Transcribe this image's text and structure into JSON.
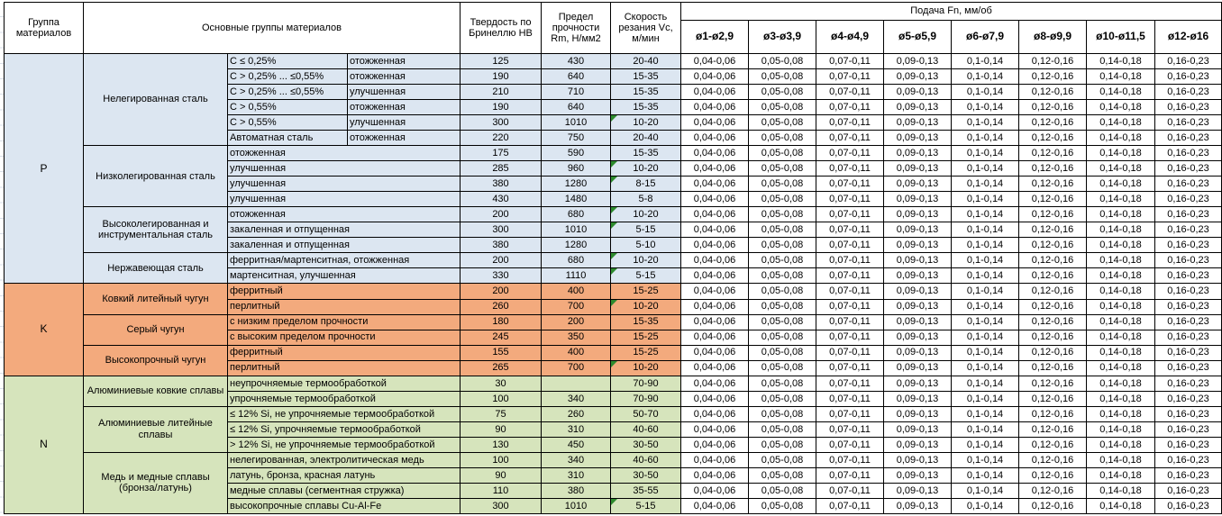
{
  "table": {
    "header": {
      "group": "Группа материалов",
      "main_groups": "Основные группы материалов",
      "hardness": "Твердость по Бринеллю HB",
      "strength": "Предел прочности Rm, Н/мм2",
      "speed": "Скорость резания Vc, м/мин",
      "feed_title": "Подача Fn, мм/об",
      "feed_columns": [
        "ø1-ø2,9",
        "ø3-ø3,9",
        "ø4-ø4,9",
        "ø5-ø5,9",
        "ø6-ø7,9",
        "ø8-ø9,9",
        "ø10-ø11,5",
        "ø12-ø16"
      ]
    },
    "feed_values": [
      "0,04-0,06",
      "0,05-0,08",
      "0,07-0,11",
      "0,09-0,13",
      "0,1-0,14",
      "0,12-0,16",
      "0,14-0,18",
      "0,16-0,23"
    ],
    "colors": {
      "p": "#dce6f1",
      "k": "#f3aa7d",
      "n": "#d6e4bc",
      "flag_triangle": "#2e8b2e"
    },
    "groups": [
      {
        "code": "P",
        "color_key": "p",
        "subgroups": [
          {
            "name": "Нелегированная сталь",
            "rows": [
              {
                "cols": [
                  "C ≤ 0,25%",
                  "отожженная"
                ],
                "hb": "125",
                "rm": "430",
                "vc": "20-40",
                "flag": false
              },
              {
                "cols": [
                  "C > 0,25% ... ≤0,55%",
                  "отожженная"
                ],
                "hb": "190",
                "rm": "640",
                "vc": "15-35",
                "flag": false
              },
              {
                "cols": [
                  "C > 0,25% ... ≤0,55%",
                  "улучшенная"
                ],
                "hb": "210",
                "rm": "710",
                "vc": "15-35",
                "flag": false
              },
              {
                "cols": [
                  "C > 0,55%",
                  "отожженная"
                ],
                "hb": "190",
                "rm": "640",
                "vc": "15-35",
                "flag": false
              },
              {
                "cols": [
                  "C > 0,55%",
                  "улучшенная"
                ],
                "hb": "300",
                "rm": "1010",
                "vc": "10-20",
                "flag": true
              },
              {
                "cols": [
                  "Автоматная сталь",
                  "отожженная"
                ],
                "hb": "220",
                "rm": "750",
                "vc": "20-40",
                "flag": false
              }
            ]
          },
          {
            "name": "Низколегированная сталь",
            "rows": [
              {
                "cols": [
                  "отожженная"
                ],
                "hb": "175",
                "rm": "590",
                "vc": "15-35",
                "flag": false
              },
              {
                "cols": [
                  "улучшенная"
                ],
                "hb": "285",
                "rm": "960",
                "vc": "10-20",
                "flag": true
              },
              {
                "cols": [
                  "улучшенная"
                ],
                "hb": "380",
                "rm": "1280",
                "vc": "8-15",
                "flag": true
              },
              {
                "cols": [
                  "улучшенная"
                ],
                "hb": "430",
                "rm": "1480",
                "vc": "5-8",
                "flag": false
              }
            ]
          },
          {
            "name": "Высоколегированная и инструментальная сталь",
            "rows": [
              {
                "cols": [
                  "отожженная"
                ],
                "hb": "200",
                "rm": "680",
                "vc": "10-20",
                "flag": true
              },
              {
                "cols": [
                  "закаленная и отпущенная"
                ],
                "hb": "300",
                "rm": "1010",
                "vc": "5-15",
                "flag": true
              },
              {
                "cols": [
                  "закаленная и отпущенная"
                ],
                "hb": "380",
                "rm": "1280",
                "vc": "5-10",
                "flag": false
              }
            ]
          },
          {
            "name": "Нержавеющая сталь",
            "rows": [
              {
                "cols": [
                  "ферритная/мартенситная, отожженная"
                ],
                "hb": "200",
                "rm": "680",
                "vc": "10-20",
                "flag": true
              },
              {
                "cols": [
                  "мартенситная, улучшенная"
                ],
                "hb": "330",
                "rm": "1110",
                "vc": "5-15",
                "flag": true
              }
            ]
          }
        ]
      },
      {
        "code": "K",
        "color_key": "k",
        "subgroups": [
          {
            "name": "Ковкий литейный чугун",
            "rows": [
              {
                "cols": [
                  "ферритный"
                ],
                "hb": "200",
                "rm": "400",
                "vc": "15-25",
                "flag": false
              },
              {
                "cols": [
                  "перлитный"
                ],
                "hb": "260",
                "rm": "700",
                "vc": "10-20",
                "flag": true
              }
            ]
          },
          {
            "name": "Серый чугун",
            "rows": [
              {
                "cols": [
                  "с низким пределом прочности"
                ],
                "hb": "180",
                "rm": "200",
                "vc": "15-35",
                "flag": false
              },
              {
                "cols": [
                  "с высоким пределом прочности"
                ],
                "hb": "245",
                "rm": "350",
                "vc": "15-25",
                "flag": false
              }
            ]
          },
          {
            "name": "Высокопрочный чугун",
            "rows": [
              {
                "cols": [
                  "ферритный"
                ],
                "hb": "155",
                "rm": "400",
                "vc": "15-25",
                "flag": false
              },
              {
                "cols": [
                  "перлитный"
                ],
                "hb": "265",
                "rm": "700",
                "vc": "10-20",
                "flag": true
              }
            ]
          }
        ]
      },
      {
        "code": "N",
        "color_key": "n",
        "subgroups": [
          {
            "name": "Алюминиевые ковкие сплавы",
            "rows": [
              {
                "cols": [
                  "неупрочняемые термообработкой"
                ],
                "hb": "30",
                "rm": "",
                "vc": "70-90",
                "flag": false
              },
              {
                "cols": [
                  "упрочняемые термообработкой"
                ],
                "hb": "100",
                "rm": "340",
                "vc": "70-90",
                "flag": false
              }
            ]
          },
          {
            "name": "Алюминиевые литейные сплавы",
            "rows": [
              {
                "cols": [
                  "≤ 12% Si, не упрочняемые термообработкой"
                ],
                "hb": "75",
                "rm": "260",
                "vc": "50-70",
                "flag": false
              },
              {
                "cols": [
                  "≤ 12% Si, упрочняемые термообработкой"
                ],
                "hb": "90",
                "rm": "310",
                "vc": "40-60",
                "flag": false
              },
              {
                "cols": [
                  "> 12% Si, не упрочняемые термообработкой"
                ],
                "hb": "130",
                "rm": "450",
                "vc": "30-50",
                "flag": false
              }
            ]
          },
          {
            "name": "Медь и медные сплавы (бронза/латунь)",
            "rows": [
              {
                "cols": [
                  "нелегированная, электролитическая медь"
                ],
                "hb": "100",
                "rm": "340",
                "vc": "40-60",
                "flag": false
              },
              {
                "cols": [
                  "латунь, бронза, красная латунь"
                ],
                "hb": "90",
                "rm": "310",
                "vc": "30-50",
                "flag": false
              },
              {
                "cols": [
                  "медные сплавы (сегментная стружка)"
                ],
                "hb": "110",
                "rm": "380",
                "vc": "35-55",
                "flag": false
              },
              {
                "cols": [
                  "высокопрочные сплавы Cu-Al-Fe"
                ],
                "hb": "300",
                "rm": "1010",
                "vc": "5-15",
                "flag": true
              }
            ]
          }
        ]
      }
    ]
  }
}
